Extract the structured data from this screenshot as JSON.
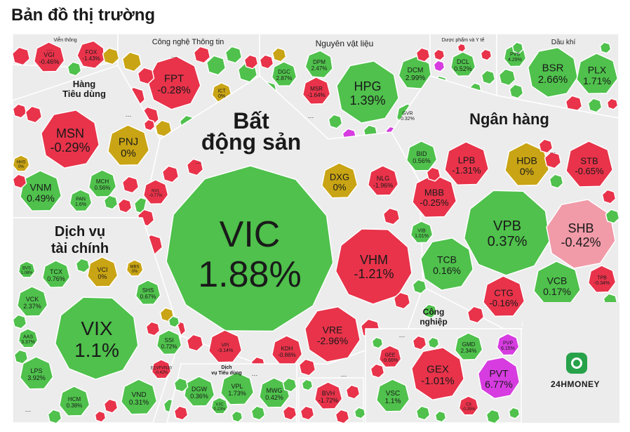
{
  "page": {
    "title": "Bản đồ thị trường"
  },
  "brand": {
    "logo_text": "24HMONEY"
  },
  "colors": {
    "green": "#4fc14c",
    "red": "#e8334a",
    "yellow": "#c9a414",
    "magenta": "#d63ce0",
    "pink": "#f19aa8"
  },
  "sectors": [
    {
      "id": "vien-thong",
      "label": "Viễn thông",
      "stocks": [
        {
          "t": "VGI",
          "p": "-0.46%"
        },
        {
          "t": "FOX",
          "p": "-1.43%"
        }
      ]
    },
    {
      "id": "cong-nghe",
      "label": "Công nghệ Thông tin",
      "stocks": [
        {
          "t": "FPT",
          "p": "-0.28%"
        },
        {
          "t": "ICT",
          "p": "0%"
        }
      ]
    },
    {
      "id": "nguyen-vat-lieu",
      "label": "Nguyên vật liệu",
      "stocks": [
        {
          "t": "DGC",
          "p": "2.87%"
        },
        {
          "t": "DPM",
          "p": "2.47%"
        },
        {
          "t": "HPG",
          "p": "1.39%"
        },
        {
          "t": "DCM",
          "p": "2.99%"
        },
        {
          "t": "MSR",
          "p": "-1.64%"
        },
        {
          "t": "GVR",
          "p": "0.32%"
        }
      ]
    },
    {
      "id": "duoc-pham",
      "label": "Dược phẩm và Y tế",
      "stocks": [
        {
          "t": "DCL",
          "p": "0.52%"
        }
      ]
    },
    {
      "id": "dau-khi",
      "label": "Dầu khí",
      "stocks": [
        {
          "t": "PVS",
          "p": "4.29%"
        },
        {
          "t": "BSR",
          "p": "2.66%"
        },
        {
          "t": "PLX",
          "p": "1.71%"
        }
      ]
    },
    {
      "id": "hang-tieu-dung",
      "label": "Hàng\nTiêu dùng",
      "stocks": [
        {
          "t": "MSN",
          "p": "-0.29%"
        },
        {
          "t": "PNJ",
          "p": "0%"
        },
        {
          "t": "VNM",
          "p": "0.49%"
        },
        {
          "t": "MCH",
          "p": "0.56%"
        },
        {
          "t": "PAN",
          "p": "1.6%"
        },
        {
          "t": "HHS",
          "p": "0%"
        }
      ]
    },
    {
      "id": "bat-dong-san",
      "label": "Bất\nđộng sản",
      "stocks": [
        {
          "t": "VIC",
          "p": "1.88%"
        },
        {
          "t": "DXG",
          "p": "0%"
        },
        {
          "t": "NLG",
          "p": "-1.96%"
        },
        {
          "t": "VHM",
          "p": "-1.21%"
        },
        {
          "t": "VRE",
          "p": "-2.96%"
        },
        {
          "t": "KDH",
          "p": "-0.86%"
        },
        {
          "t": "NVL",
          "p": "-0.77%"
        },
        {
          "t": "VPI",
          "p": "-3.14%"
        }
      ]
    },
    {
      "id": "ngan-hang",
      "label": "Ngân hàng",
      "stocks": [
        {
          "t": "BID",
          "p": "0.56%"
        },
        {
          "t": "LPB",
          "p": "-1.31%"
        },
        {
          "t": "HDB",
          "p": "0%"
        },
        {
          "t": "STB",
          "p": "-0.65%"
        },
        {
          "t": "MBB",
          "p": "-0.25%"
        },
        {
          "t": "VPB",
          "p": "0.37%"
        },
        {
          "t": "SHB",
          "p": "-0.42%"
        },
        {
          "t": "VIB",
          "p": "1.01%"
        },
        {
          "t": "TCB",
          "p": "0.16%"
        },
        {
          "t": "CTG",
          "p": "-0.16%"
        },
        {
          "t": "VCB",
          "p": "0.17%"
        },
        {
          "t": "TPB",
          "p": "-0.34%"
        },
        {
          "t": "ACB",
          "p": "0.22%"
        }
      ]
    },
    {
      "id": "dich-vu-tai-chinh",
      "label": "Dịch vụ\ntài chính",
      "stocks": [
        {
          "t": "BVS",
          "p": "1.08%"
        },
        {
          "t": "TCX",
          "p": "0.76%"
        },
        {
          "t": "VCI",
          "p": "0%"
        },
        {
          "t": "MBS",
          "p": "0%"
        },
        {
          "t": "VCK",
          "p": "2.37%"
        },
        {
          "t": "SHS",
          "p": "0.67%"
        },
        {
          "t": "VIX",
          "p": "1.1%"
        },
        {
          "t": "AAS",
          "p": "3.37%"
        },
        {
          "t": "SSI",
          "p": "0.72%"
        },
        {
          "t": "LPS",
          "p": "3.92%"
        },
        {
          "t": "E1VFVN30",
          "p": "-0.42%"
        },
        {
          "t": "HCM",
          "p": "0.38%"
        },
        {
          "t": "VND",
          "p": "0.31%"
        }
      ]
    },
    {
      "id": "dich-vu-tieu-dung",
      "label": "Dịch\nvụ Tiêu dùng",
      "stocks": [
        {
          "t": "DGW",
          "p": "0.36%"
        },
        {
          "t": "VPL",
          "p": "1.73%"
        },
        {
          "t": "MWG",
          "p": "0.42%"
        },
        {
          "t": "VJC",
          "p": "0.23%"
        }
      ]
    },
    {
      "id": "khac",
      "label": "",
      "stocks": [
        {
          "t": "BVH",
          "p": "-1.72%"
        }
      ]
    },
    {
      "id": "cong-nghiep",
      "label": "Công\nnghiệp",
      "stocks": [
        {
          "t": "GEE",
          "p": "-0.66%"
        },
        {
          "t": "GMD",
          "p": "2.34%"
        },
        {
          "t": "PVP",
          "p": "6.15%"
        },
        {
          "t": "GEX",
          "p": "-1.01%"
        },
        {
          "t": "PVT",
          "p": "6.77%"
        },
        {
          "t": "VSC",
          "p": "1.1%"
        },
        {
          "t": "CII",
          "p": "-0.35%"
        }
      ]
    }
  ],
  "more": "…"
}
